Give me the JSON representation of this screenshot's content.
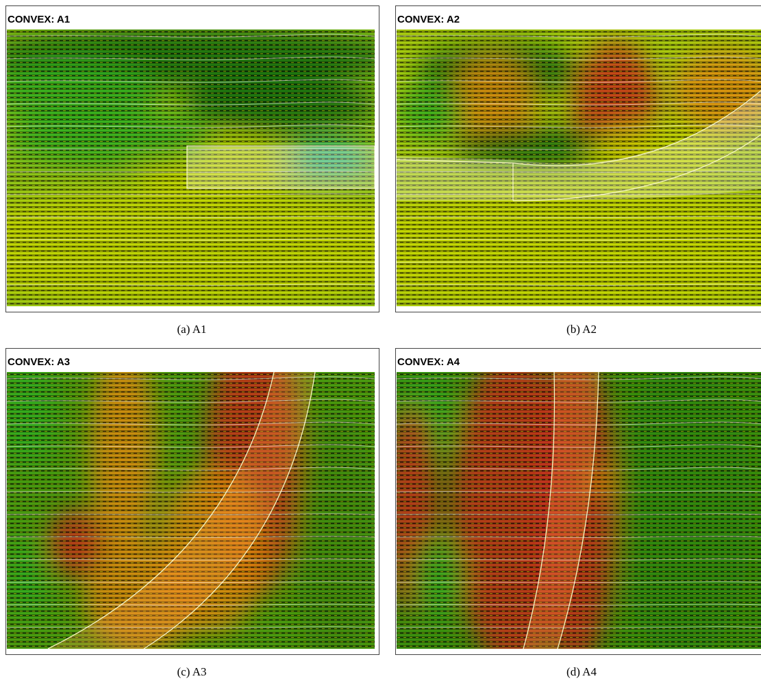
{
  "panels": [
    {
      "title": "CONVEX: A1",
      "caption": "(a) A1"
    },
    {
      "title": "CONVEX: A2",
      "caption": "(b) A2"
    },
    {
      "title": "CONVEX: A3",
      "caption": "(c) A3"
    },
    {
      "title": "CONVEX: A4",
      "caption": "(d) A4"
    }
  ]
}
